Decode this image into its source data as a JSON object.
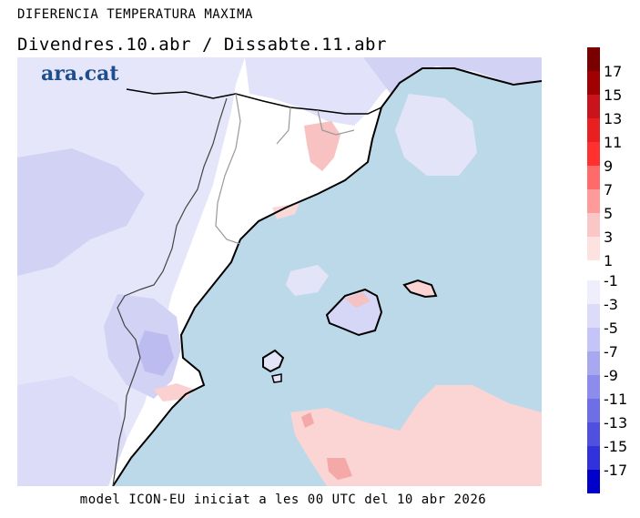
{
  "header": {
    "title": "DIFERENCIA TEMPERATURA MAXIMA",
    "subtitle": "Divendres.10.abr / Dissabte.11.abr"
  },
  "footer": {
    "model_info": "model ICON-EU iniciat a les 00 UTC del 10 abr 2026"
  },
  "logo": {
    "text": "ara.cat"
  },
  "legend": {
    "positive": {
      "labels": [
        "17",
        "15",
        "13",
        "11",
        "9",
        "7",
        "5",
        "3",
        "1"
      ],
      "colors": [
        "#7a0000",
        "#a00000",
        "#c8141a",
        "#e82020",
        "#ff3030",
        "#ff6a6a",
        "#ff9a9a",
        "#fbc6c6",
        "#fde2e2"
      ]
    },
    "negative": {
      "labels": [
        "-1",
        "-3",
        "-5",
        "-7",
        "-9",
        "-11",
        "-13",
        "-15",
        "-17"
      ],
      "colors": [
        "#eeeefc",
        "#dcdcfa",
        "#c4c4f6",
        "#a8a8f0",
        "#8c8cec",
        "#6e6ee6",
        "#5050e0",
        "#3232dc",
        "#0000c8"
      ]
    }
  },
  "map_colors": {
    "sea": "#bcd9ea",
    "land_neutral": "#ffffff",
    "warm_light": "#fbd4d4",
    "warm_medium": "#f4a4a4",
    "cool_light": "#ececfb",
    "cool_medium": "#d6d6f6",
    "cool_dark": "#c0c0f2"
  }
}
